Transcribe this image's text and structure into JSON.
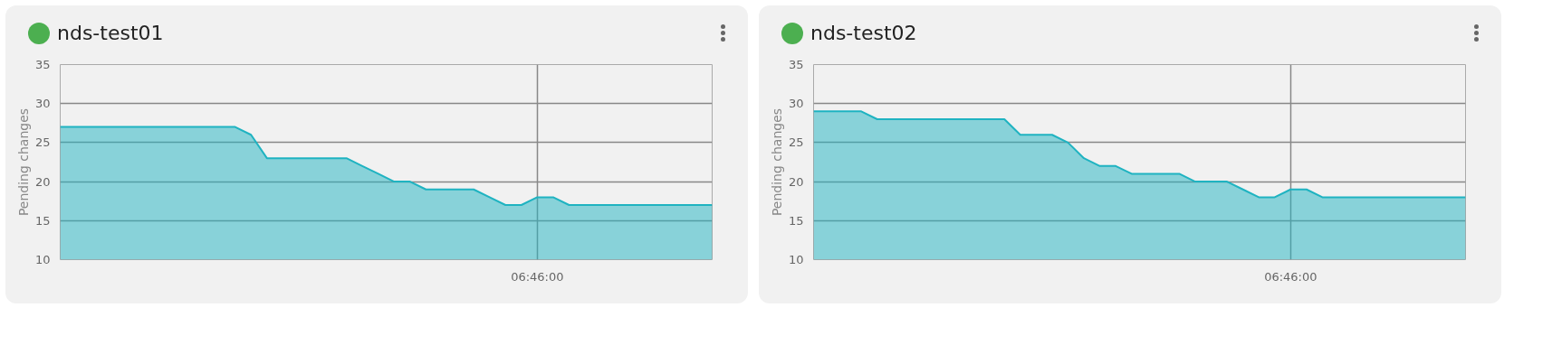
{
  "chart_data": [
    {
      "type": "area",
      "title": "nds-test01",
      "ylabel": "Pending changes",
      "ylim": [
        10,
        35
      ],
      "yticks": [
        10,
        15,
        20,
        25,
        30,
        35
      ],
      "grid": true,
      "categories": [
        null,
        null,
        null,
        null,
        null,
        null,
        null,
        null,
        null,
        null,
        null,
        null,
        null,
        null,
        null,
        null,
        null,
        null,
        null,
        null,
        null,
        null,
        null,
        null,
        null,
        null,
        null,
        null,
        null,
        null,
        "06:46:00",
        null,
        null,
        null,
        null,
        null,
        null,
        null,
        null,
        null,
        null,
        null
      ],
      "series": [
        {
          "color": "#1fb3c1",
          "values": [
            27,
            27,
            27,
            27,
            27,
            27,
            27,
            27,
            27,
            27,
            27,
            27,
            26,
            23,
            23,
            23,
            23,
            23,
            23,
            22,
            21,
            20,
            20,
            19,
            19,
            19,
            19,
            18,
            17,
            17,
            18,
            18,
            17,
            17,
            17,
            17,
            17,
            17,
            17,
            17,
            17,
            17
          ]
        }
      ]
    },
    {
      "type": "area",
      "title": "nds-test02",
      "ylabel": "Pending changes",
      "ylim": [
        10,
        35
      ],
      "yticks": [
        10,
        15,
        20,
        25,
        30,
        35
      ],
      "grid": true,
      "categories": [
        null,
        null,
        null,
        null,
        null,
        null,
        null,
        null,
        null,
        null,
        null,
        null,
        null,
        null,
        null,
        null,
        null,
        null,
        null,
        null,
        null,
        null,
        null,
        null,
        null,
        null,
        null,
        null,
        null,
        null,
        "06:46:00",
        null,
        null,
        null,
        null,
        null,
        null,
        null,
        null,
        null,
        null,
        null
      ],
      "series": [
        {
          "color": "#1fb3c1",
          "values": [
            29,
            29,
            29,
            29,
            28,
            28,
            28,
            28,
            28,
            28,
            28,
            28,
            28,
            26,
            26,
            26,
            25,
            23,
            22,
            22,
            21,
            21,
            21,
            21,
            20,
            20,
            20,
            19,
            18,
            18,
            19,
            19,
            18,
            18,
            18,
            18,
            18,
            18,
            18,
            18,
            18,
            18
          ]
        }
      ]
    }
  ]
}
